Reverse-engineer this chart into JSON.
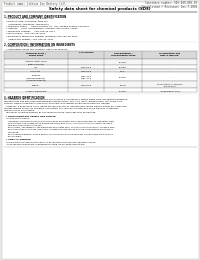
{
  "bg_color": "#e8e8e4",
  "page_bg": "#ffffff",
  "header_left": "Product name: Lithium Ion Battery Cell",
  "header_right_line1": "Substance number: SDS-049-009-10",
  "header_right_line2": "Established / Revision: Dec.7.2009",
  "title": "Safety data sheet for chemical products (SDS)",
  "section1_title": "1. PRODUCT AND COMPANY IDENTIFICATION",
  "section1_lines": [
    "  • Product name: Lithium Ion Battery Cell",
    "  • Product code: Cylindrical-type cell",
    "      (UR18650J, UR18650J, UR18650A)",
    "  • Company name:     Sanyo Electric Co., Ltd., Mobile Energy Company",
    "  • Address:    2001  Kamishinden, Sumoto-City, Hyogo, Japan",
    "  • Telephone number:    +81-799-26-4111",
    "  • Fax number:  +81-799-26-4129",
    "  • Emergency telephone number (daytime)+81-799-26-3962",
    "      (Night and holiday) +81-799-26-4101"
  ],
  "section2_title": "2. COMPOSITION / INFORMATION ON INGREDIENTS",
  "section2_intro": "  • Substance or preparation: Preparation",
  "section2_sub": "  • Information about the chemical nature of product:",
  "table_col_headers": [
    "Chemical name /\nBrand name",
    "CAS number",
    "Concentration /\nConcentration range",
    "Classification and\nhazard labeling"
  ],
  "table_rows": [
    [
      "Lithium cobalt oxide\n(LiMn-Co-Ni-Ox)",
      "-",
      "30-40%",
      "-"
    ],
    [
      "Iron",
      "7439-89-6",
      "15-25%",
      "-"
    ],
    [
      "Aluminum",
      "7429-90-5",
      "2-5%",
      "-"
    ],
    [
      "Graphite\n(Natural graphite)\n(Artificial graphite)",
      "7782-42-5\n7782-42-5",
      "10-25%",
      "-"
    ],
    [
      "Copper",
      "7440-50-8",
      "5-15%",
      "Sensitization of the skin\ngroup No.2"
    ],
    [
      "Organic electrolyte",
      "-",
      "10-20%",
      "Inflammable liquid"
    ]
  ],
  "section3_title": "3. HAZARDS IDENTIFICATION",
  "section3_lines": [
    "For the battery cell, chemical materials are stored in a hermetically sealed metal case, designed to withstand",
    "temperatures and pressures-concentrations during normal use. As a result, during normal use, there is no",
    "physical danger of ignition or explosion and there is no danger of hazardous materials leakage.",
    "   However, if exposed to a fire, added mechanical shocks, decomposed, where electric and/or dry abuse use,",
    "the gas release cannot be operated. The battery cell case will be breached of the patterns. Hazardous",
    "materials may be released.",
    "   Moreover, if heated strongly by the surrounding fire, some gas may be emitted."
  ],
  "hazard_title": "  • Most important hazard and effects:",
  "hazard_lines": [
    "    Human health effects:",
    "      Inhalation: The release of the electrolyte has an anesthetic action and stimulates in respiratory tract.",
    "      Skin contact: The release of the electrolyte stimulates a skin. The electrolyte skin contact causes a",
    "      sore and stimulation on the skin.",
    "      Eye contact: The release of the electrolyte stimulates eyes. The electrolyte eye contact causes a sore",
    "      and stimulation on the eye. Especially, a substance that causes a strong inflammation of the eye is",
    "      contained.",
    "      Environmental effects: Since a battery cell remains in the environment, do not throw out it into the",
    "      environment."
  ],
  "specific_title": "  • Specific hazards:",
  "specific_lines": [
    "    If the electrolyte contacts with water, it will generate detrimental hydrogen fluoride.",
    "    Since the main electrolyte is inflammable liquid, do not bring close to fire."
  ]
}
